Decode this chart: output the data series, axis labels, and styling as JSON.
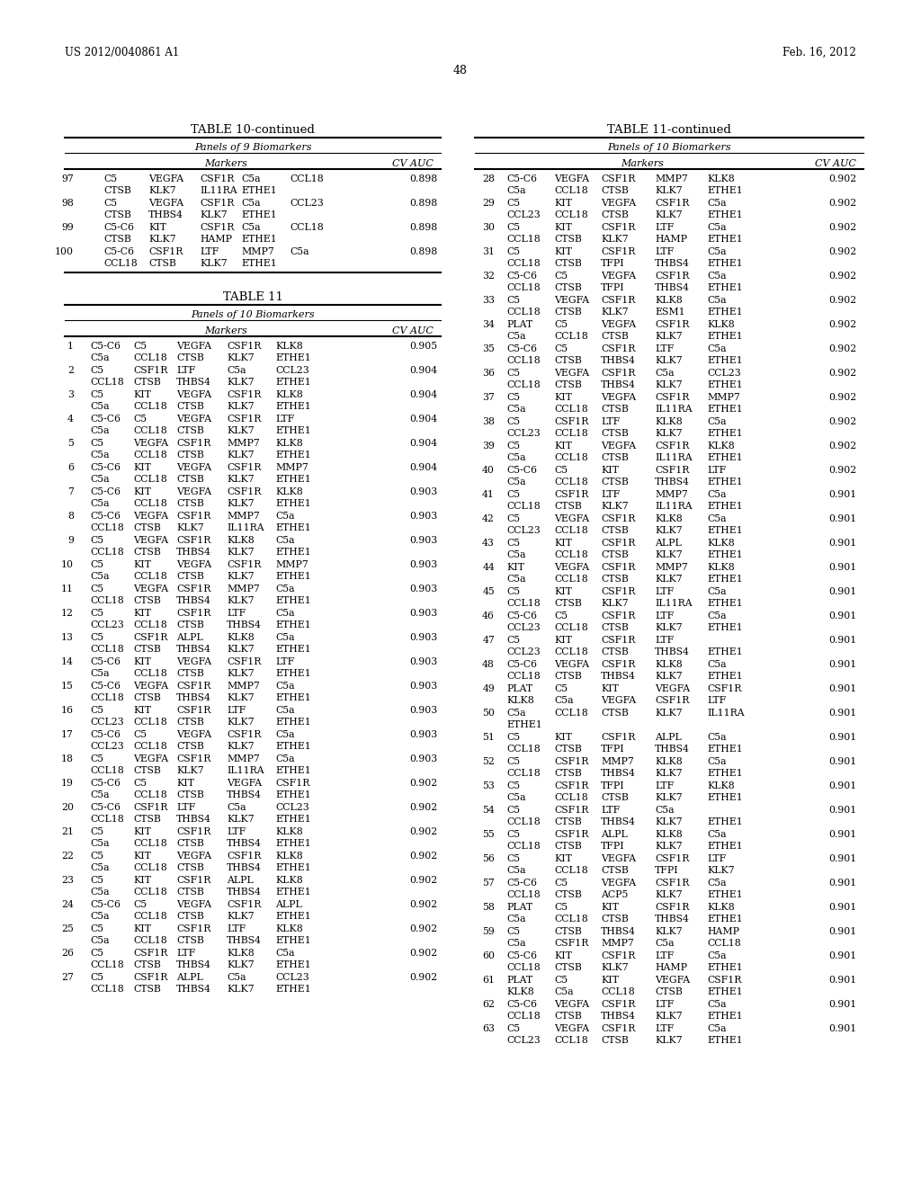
{
  "header_left": "US 2012/0040861 A1",
  "header_right": "Feb. 16, 2012",
  "page_number": "48",
  "bg_color": "#ffffff",
  "text_color": "#000000"
}
